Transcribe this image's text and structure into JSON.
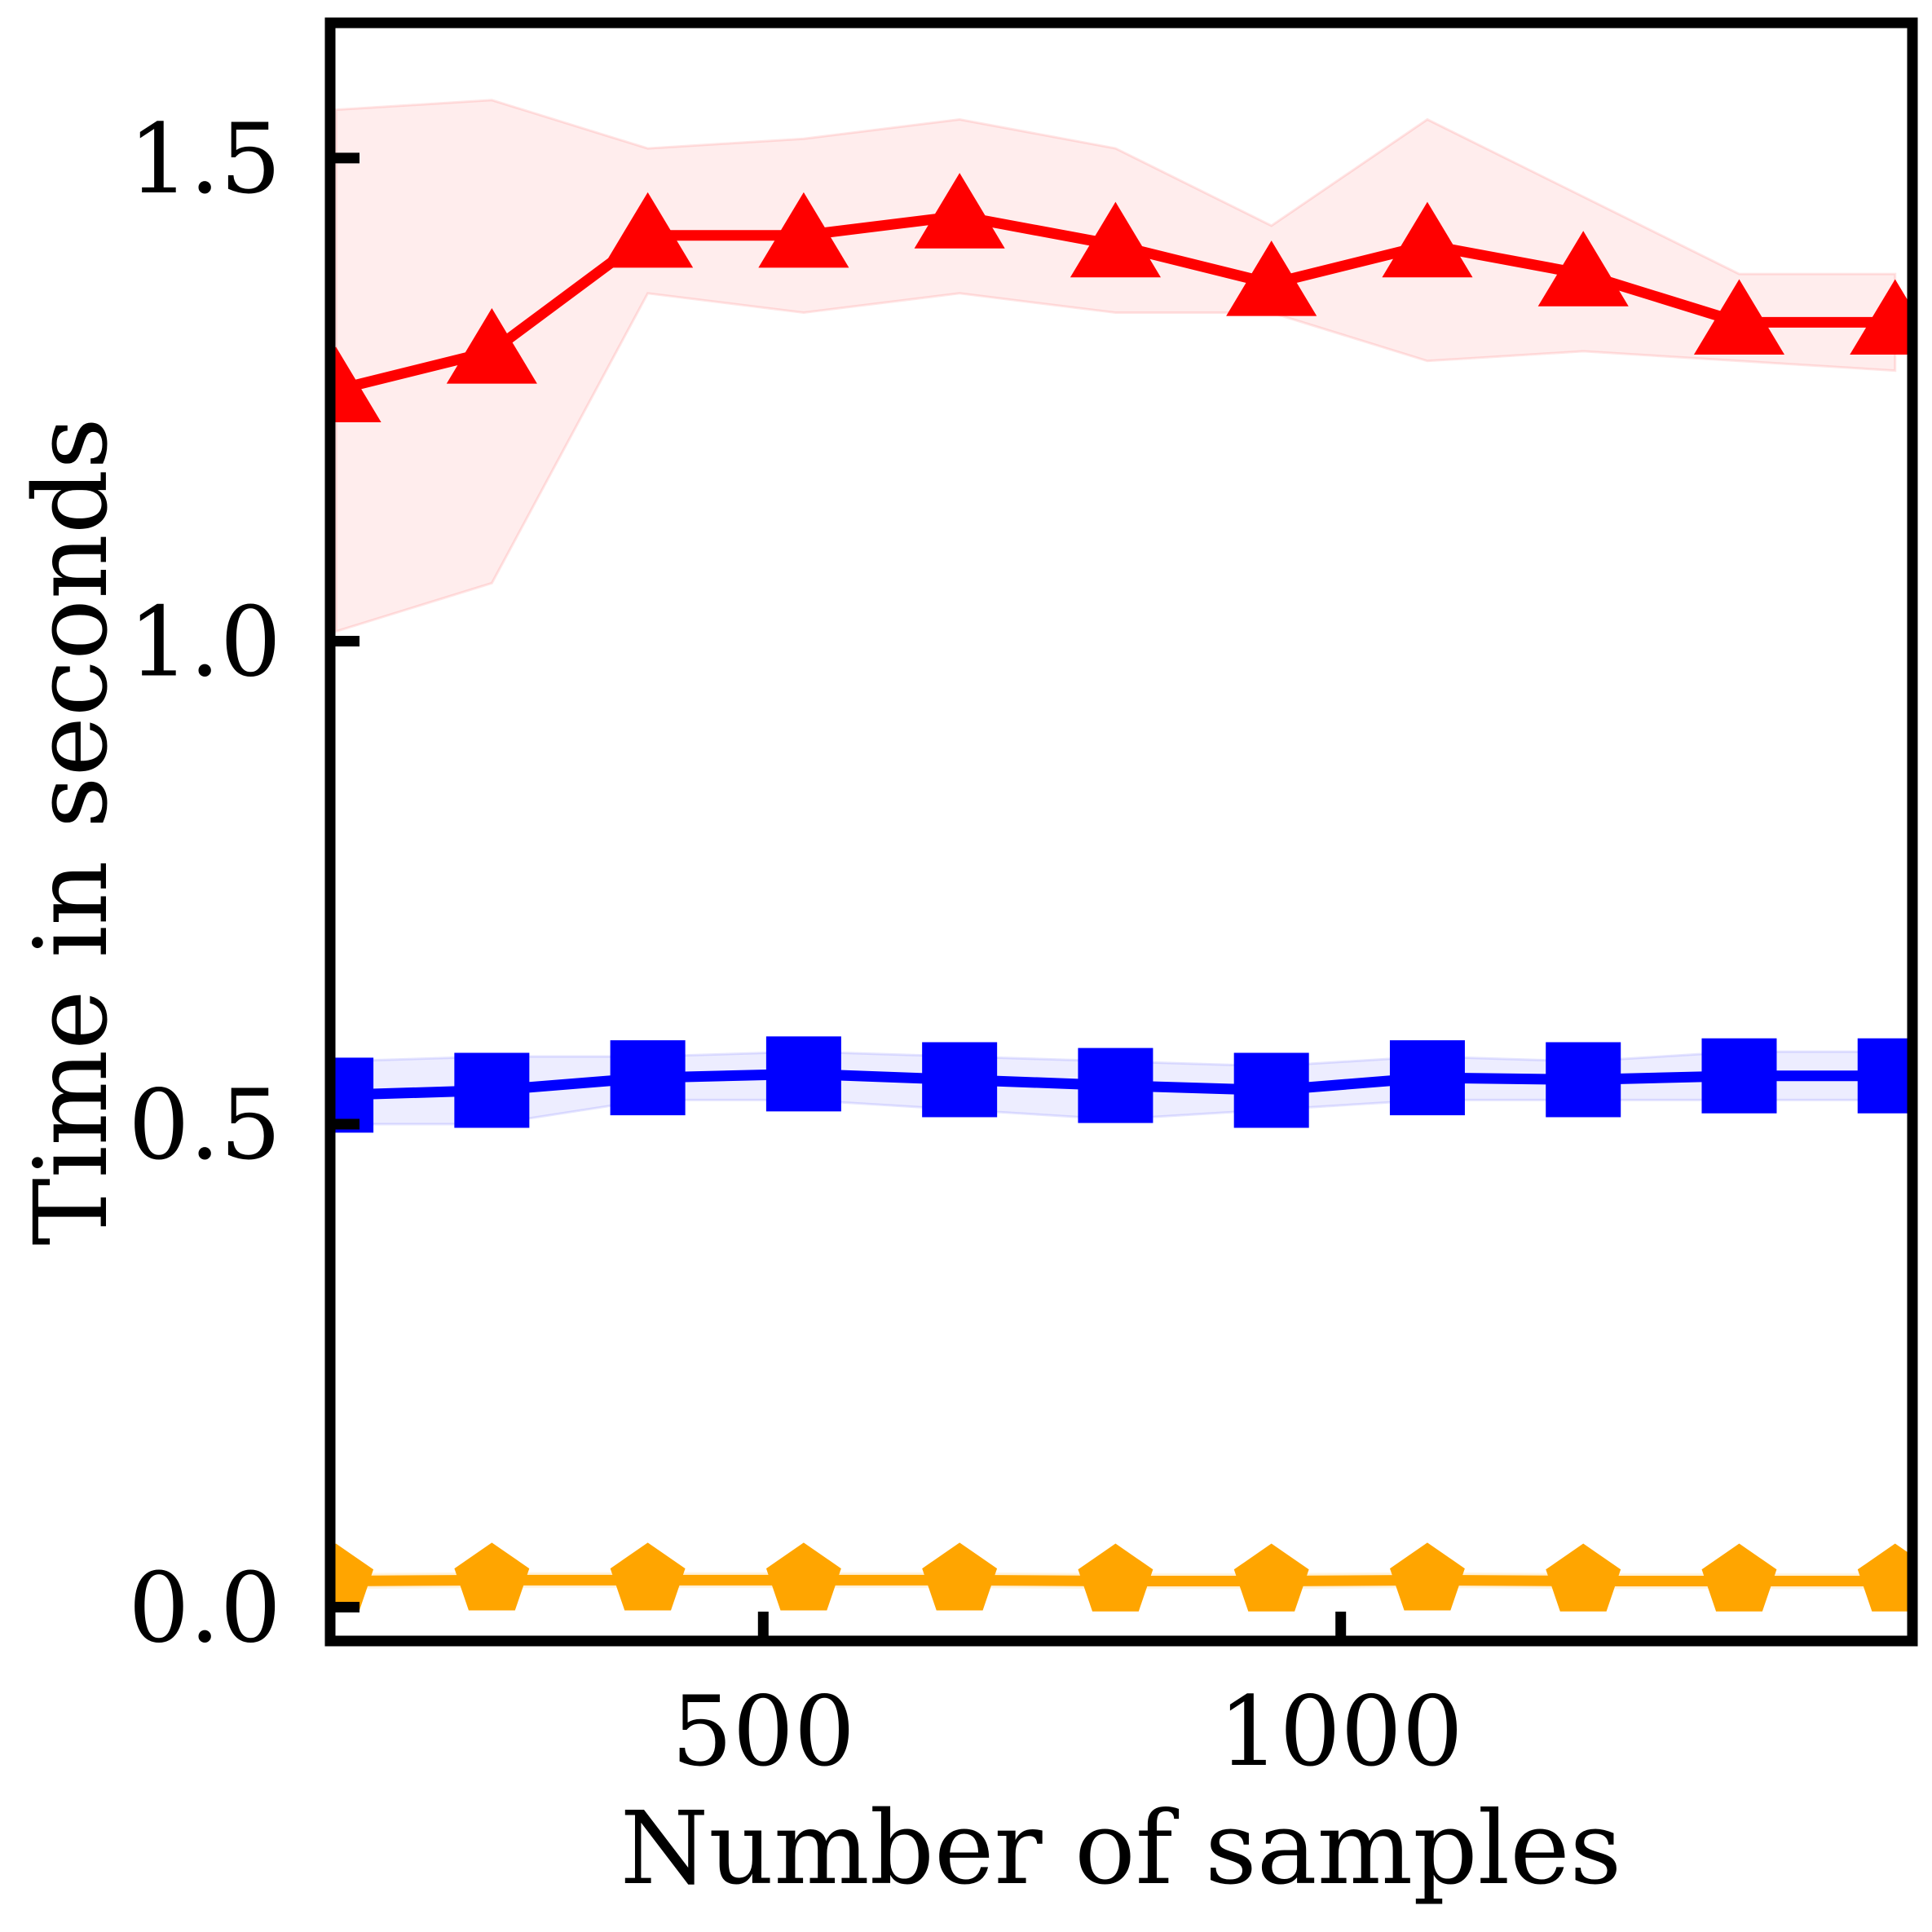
{
  "chart_data": {
    "type": "line",
    "title": "",
    "xlabel": "Number of samples",
    "ylabel": "Time in seconds",
    "xlim": [
      125,
      1495
    ],
    "ylim": [
      -0.035,
      1.64
    ],
    "x_ticks": [
      500,
      1000
    ],
    "x_tick_labels": [
      "500",
      "1000"
    ],
    "y_ticks": [
      0.0,
      0.5,
      1.0,
      1.5
    ],
    "y_tick_labels": [
      "0.0",
      "0.5",
      "1.0",
      "1.5"
    ],
    "grid": false,
    "legend": "none",
    "x": [
      130,
      265,
      400,
      535,
      670,
      805,
      940,
      1075,
      1210,
      1345,
      1480
    ],
    "series": [
      {
        "color": "#ff0000",
        "marker": "triangle",
        "values": [
          1.26,
          1.3,
          1.42,
          1.42,
          1.44,
          1.41,
          1.37,
          1.41,
          1.38,
          1.33,
          1.33
        ],
        "lower": [
          1.01,
          1.06,
          1.36,
          1.34,
          1.36,
          1.34,
          1.34,
          1.29,
          1.3,
          1.29,
          1.28
        ],
        "upper": [
          1.55,
          1.56,
          1.51,
          1.52,
          1.54,
          1.51,
          1.43,
          1.54,
          1.46,
          1.38,
          1.38
        ]
      },
      {
        "color": "#0000ff",
        "marker": "square",
        "values": [
          0.53,
          0.535,
          0.548,
          0.552,
          0.546,
          0.54,
          0.535,
          0.548,
          0.546,
          0.55,
          0.55
        ],
        "lower": [
          0.5,
          0.5,
          0.525,
          0.525,
          0.515,
          0.505,
          0.515,
          0.525,
          0.525,
          0.525,
          0.525
        ],
        "upper": [
          0.565,
          0.57,
          0.57,
          0.575,
          0.57,
          0.565,
          0.56,
          0.57,
          0.565,
          0.575,
          0.575
        ]
      },
      {
        "color": "#ffa500",
        "marker": "pentagon",
        "values": [
          0.027,
          0.028,
          0.028,
          0.028,
          0.028,
          0.027,
          0.027,
          0.028,
          0.027,
          0.027,
          0.027
        ],
        "lower": [
          0.02,
          0.021,
          0.021,
          0.021,
          0.021,
          0.02,
          0.02,
          0.021,
          0.02,
          0.02,
          0.02
        ],
        "upper": [
          0.034,
          0.035,
          0.035,
          0.035,
          0.035,
          0.034,
          0.034,
          0.035,
          0.034,
          0.034,
          0.034
        ]
      }
    ]
  }
}
